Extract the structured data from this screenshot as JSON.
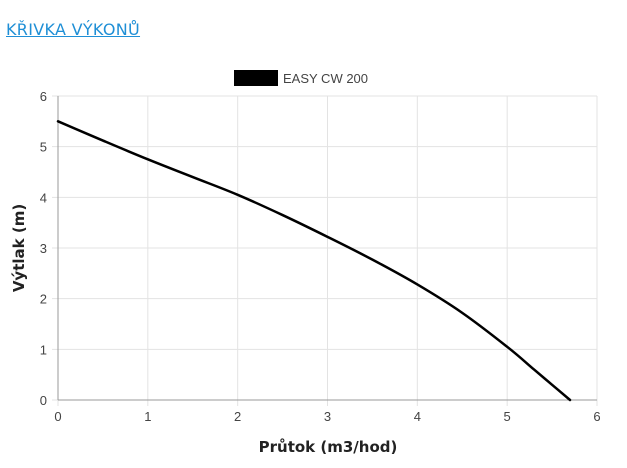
{
  "page": {
    "title": "KŘIVKA VÝKONŮ"
  },
  "colors": {
    "title_link": "#1f8fd6",
    "grid": "#e3e3e3",
    "axis": "#9a9a9a",
    "series": "#000000"
  },
  "chart_data": {
    "type": "line",
    "title": "",
    "xlabel": "Průtok (m3/hod)",
    "ylabel": "Výtlak (m)",
    "xlim": [
      0,
      6
    ],
    "ylim": [
      0,
      6
    ],
    "x_ticks": [
      "0",
      "1",
      "2",
      "3",
      "4",
      "5",
      "6"
    ],
    "y_ticks": [
      "0",
      "1",
      "2",
      "3",
      "4",
      "5",
      "6"
    ],
    "grid": true,
    "legend_position": "top-center",
    "series": [
      {
        "name": "EASY CW 200",
        "color": "#000000",
        "points": [
          [
            0,
            5.5
          ],
          [
            0.5,
            5.12
          ],
          [
            1,
            4.75
          ],
          [
            1.5,
            4.4
          ],
          [
            2,
            4.05
          ],
          [
            2.5,
            3.65
          ],
          [
            3,
            3.22
          ],
          [
            3.5,
            2.77
          ],
          [
            4,
            2.28
          ],
          [
            4.5,
            1.72
          ],
          [
            5,
            1.05
          ],
          [
            5.3,
            0.6
          ],
          [
            5.5,
            0.3
          ],
          [
            5.7,
            0
          ]
        ]
      }
    ]
  }
}
